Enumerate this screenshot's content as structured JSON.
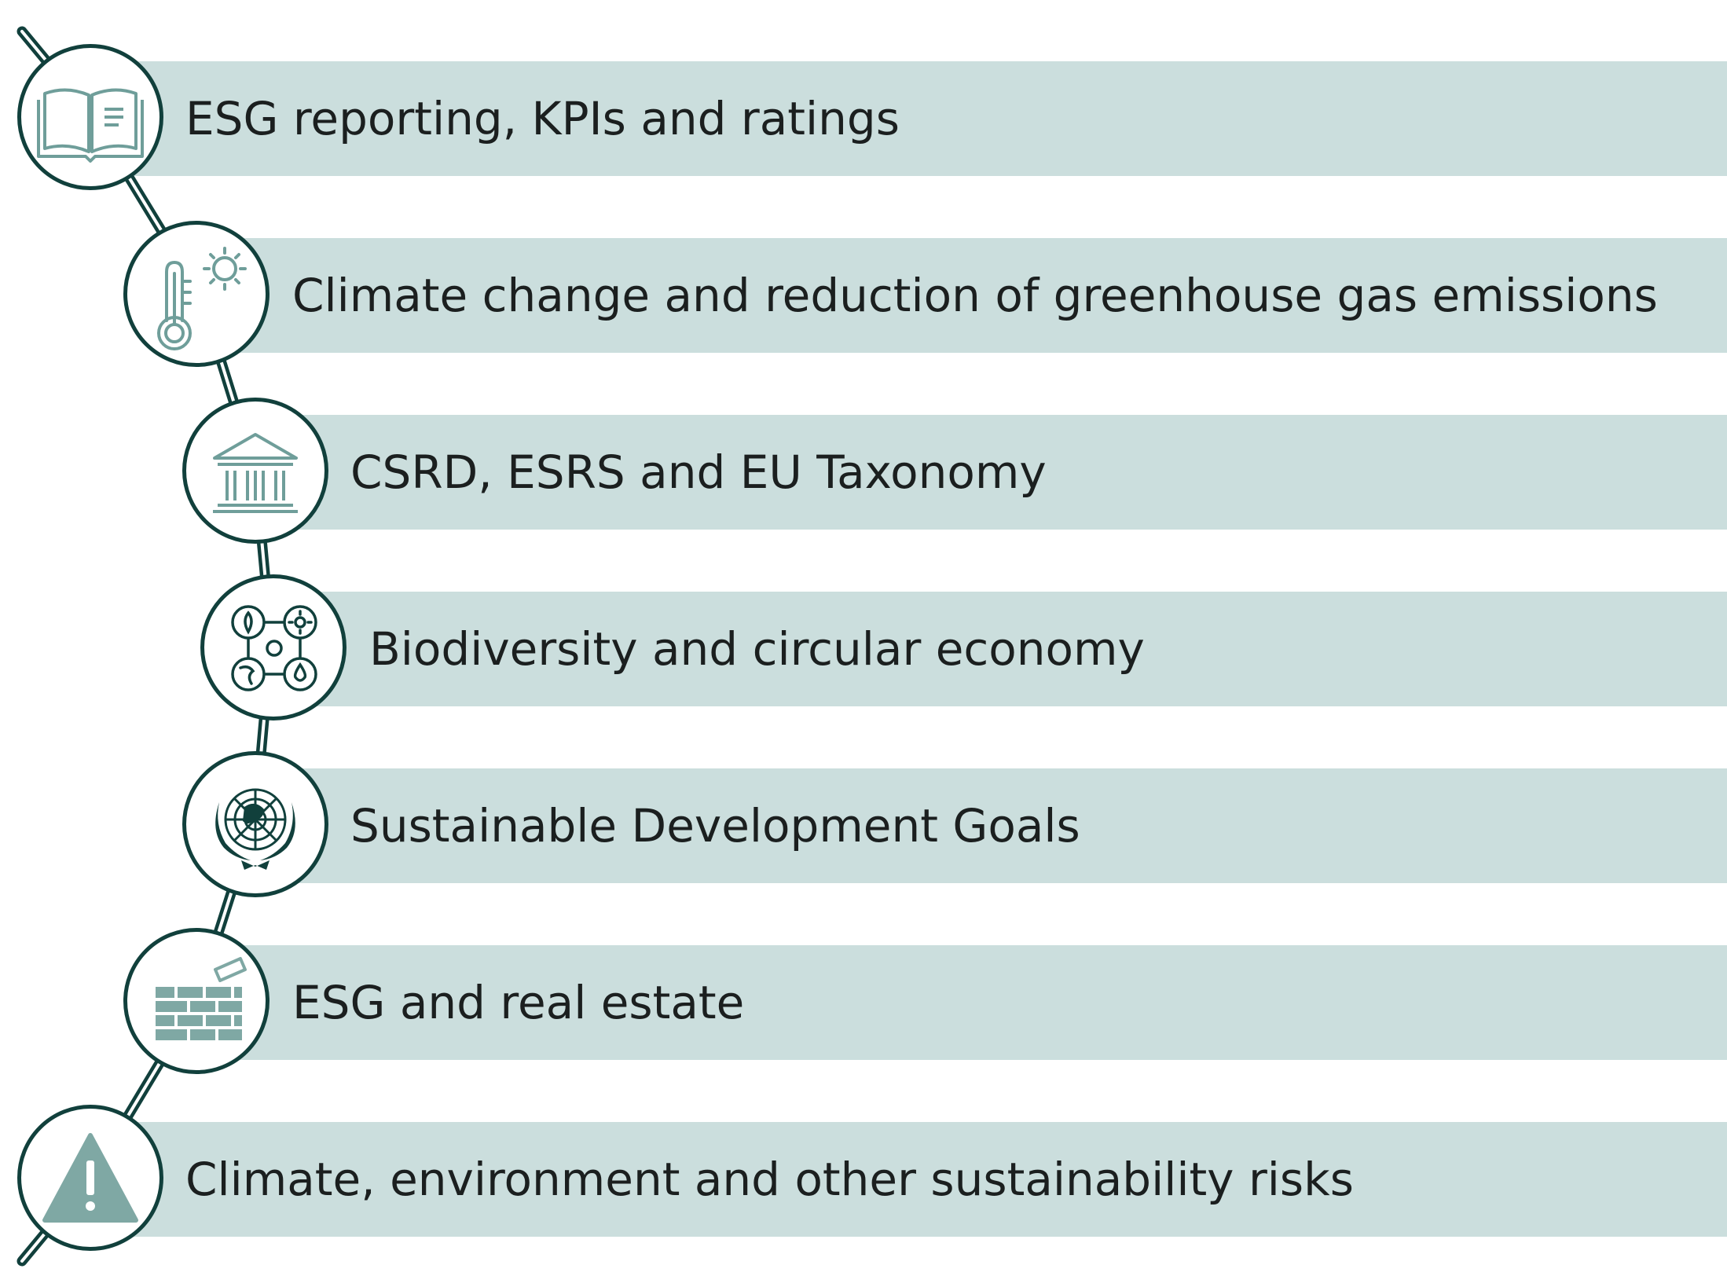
{
  "colors": {
    "band": "#cbdedd",
    "connector": "#11403c",
    "circle_border": "#11403c",
    "icon_stroke": "#6f9e9a",
    "icon_fill": "#7fa8a4",
    "text": "#1b1f1f"
  },
  "items": [
    {
      "label": "ESG reporting, KPIs and ratings",
      "icon": "open-book-icon"
    },
    {
      "label": "Climate change and reduction of greenhouse gas emissions",
      "icon": "thermometer-sun-icon"
    },
    {
      "label": "CSRD, ESRS and EU Taxonomy",
      "icon": "institution-building-icon"
    },
    {
      "label": "Biodiversity and circular economy",
      "icon": "circular-elements-icon"
    },
    {
      "label": "Sustainable Development Goals",
      "icon": "un-emblem-icon"
    },
    {
      "label": "ESG and real estate",
      "icon": "brick-wall-icon"
    },
    {
      "label": "Climate, environment and other sustainability risks",
      "icon": "warning-triangle-icon"
    }
  ]
}
